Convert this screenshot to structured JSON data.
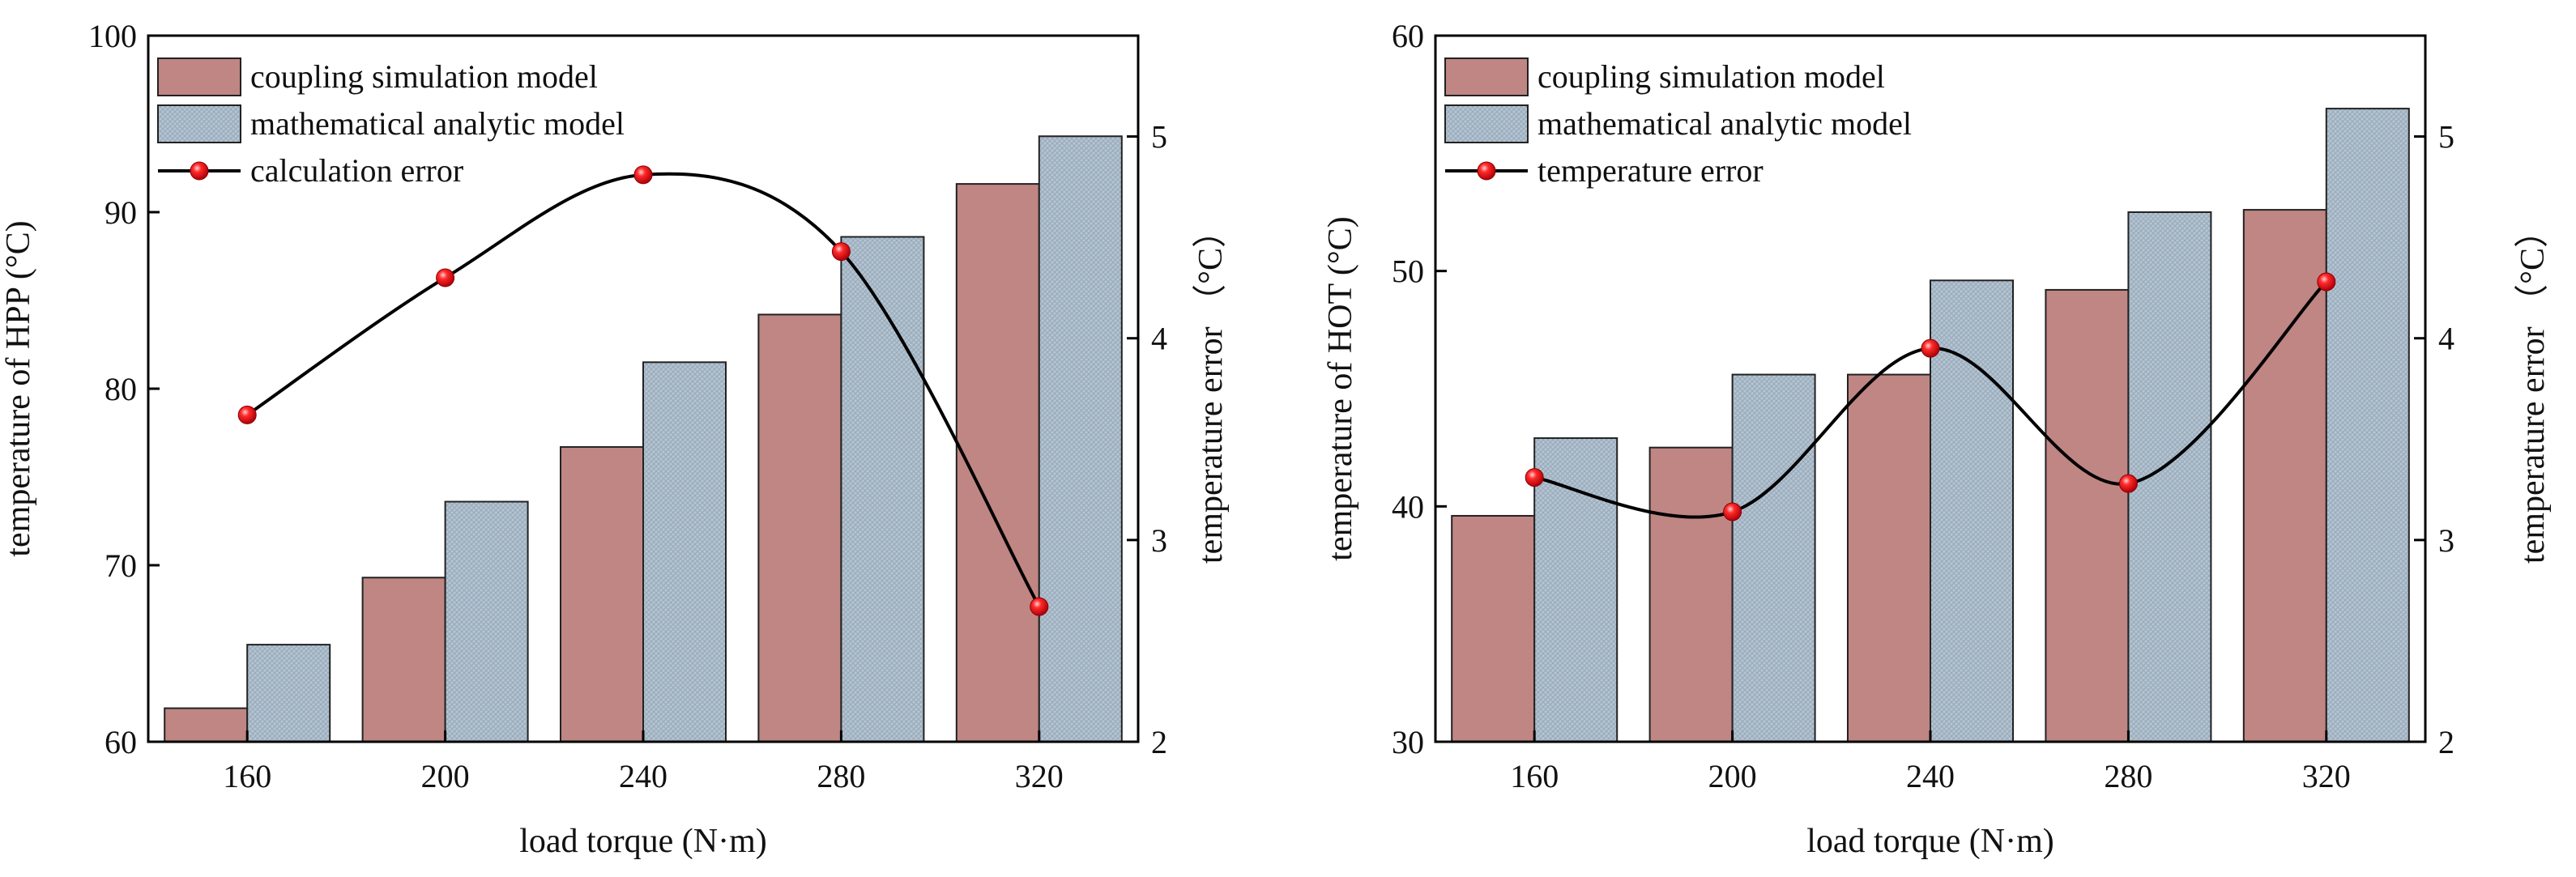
{
  "colors": {
    "coupling": "#bf8684",
    "analytic": "#b3c4d3",
    "analytic_hatch": "#9aaab9",
    "error_line": "#000000",
    "marker": "#e8141a"
  },
  "chart_data": [
    {
      "type": "bar",
      "categories": [
        "160",
        "200",
        "240",
        "280",
        "320"
      ],
      "xlabel": "load torque (N·m)",
      "ylabel": "temperature of  HPP (°C)",
      "ylabel_right": "temperature error （°C）",
      "ylim": [
        60,
        100
      ],
      "yticks": [
        "60",
        "70",
        "80",
        "90",
        "100"
      ],
      "ylim_right": [
        2,
        5.5
      ],
      "yticks_right": [
        "2",
        "3",
        "4",
        "5"
      ],
      "series": [
        {
          "name": "coupling simulation model",
          "kind": "bar",
          "values": [
            61.9,
            69.3,
            76.7,
            84.2,
            91.6
          ]
        },
        {
          "name": "mathematical analytic model",
          "kind": "bar",
          "values": [
            65.5,
            73.6,
            81.5,
            88.6,
            94.3
          ]
        },
        {
          "name": "calculation error",
          "kind": "line",
          "axis": "right",
          "values": [
            3.62,
            4.3,
            4.81,
            4.43,
            2.67
          ]
        }
      ]
    },
    {
      "type": "bar",
      "categories": [
        "160",
        "200",
        "240",
        "280",
        "320"
      ],
      "xlabel": "load torque (N·m)",
      "ylabel": "temperature of HOT (°C)",
      "ylabel_right": "temperature error （°C）",
      "ylim": [
        30,
        60
      ],
      "yticks": [
        "30",
        "40",
        "50",
        "60"
      ],
      "ylim_right": [
        2,
        5.5
      ],
      "yticks_right": [
        "2",
        "3",
        "4",
        "5"
      ],
      "series": [
        {
          "name": "coupling simulation model",
          "kind": "bar",
          "values": [
            39.6,
            42.5,
            45.6,
            49.2,
            52.6
          ]
        },
        {
          "name": "mathematical analytic model",
          "kind": "bar",
          "values": [
            42.9,
            45.6,
            49.6,
            52.5,
            56.9
          ]
        },
        {
          "name": "temperature error",
          "kind": "line",
          "axis": "right",
          "values": [
            3.31,
            3.14,
            3.95,
            3.28,
            4.28
          ]
        }
      ]
    }
  ]
}
